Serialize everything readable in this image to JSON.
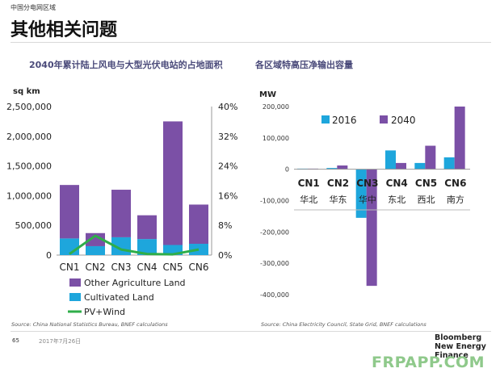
{
  "header": {
    "section_label": "中国分电网区域",
    "page_title": "其他相关问题"
  },
  "footer": {
    "page_number": "65",
    "date": "2017年7月26日",
    "brand_line1": "Bloomberg",
    "brand_line2": "New Energy Finance",
    "watermark": "FRPAPP.COM"
  },
  "colors": {
    "other_agriculture": "#7b50a6",
    "cultivated": "#1ea6dc",
    "pv_wind": "#2fae4a",
    "bar_2016": "#1ea6dc",
    "bar_2040": "#7b50a6"
  },
  "chart_data": [
    {
      "type": "bar",
      "stacked": true,
      "title": "2040年累计陆上风电与大型光伏电站的占地面积",
      "ylabel": "sq km",
      "categories": [
        "CN1",
        "CN2",
        "CN3",
        "CN4",
        "CN5",
        "CN6"
      ],
      "series": [
        {
          "name": "Cultivated Land",
          "values": [
            280000,
            150000,
            300000,
            270000,
            170000,
            190000
          ]
        },
        {
          "name": "Other Agriculture Land",
          "values": [
            900000,
            220000,
            800000,
            400000,
            2080000,
            660000
          ]
        }
      ],
      "line_series": {
        "name": "PV+Wind",
        "axis": "right",
        "values": [
          0.3,
          5.2,
          1.5,
          0.3,
          0.2,
          1.5
        ]
      },
      "ylim": [
        0,
        2500000
      ],
      "yticks": [
        "0",
        "500,000",
        "1,000,000",
        "1,500,000",
        "2,000,000",
        "2,500,000"
      ],
      "y2lim": [
        0,
        40
      ],
      "y2ticks": [
        "0%",
        "8%",
        "16%",
        "24%",
        "32%",
        "40%"
      ],
      "legend": [
        "Other Agriculture Land",
        "Cultivated Land",
        "PV+Wind"
      ],
      "legend_position": "bottom",
      "source": "Source: China National Statistics Bureau, BNEF calculations"
    },
    {
      "type": "bar",
      "title": "各区域特高压净输出容量",
      "ylabel": "MW",
      "categories": [
        "CN1",
        "CN2",
        "CN3",
        "CN4",
        "CN5",
        "CN6"
      ],
      "category_names": [
        "华北",
        "华东",
        "华中",
        "东北",
        "西北",
        "南方"
      ],
      "series": [
        {
          "name": "2016",
          "values": [
            2000,
            4000,
            -155000,
            60000,
            20000,
            38000
          ]
        },
        {
          "name": "2040",
          "values": [
            2000,
            12000,
            -372000,
            20000,
            75000,
            200000
          ]
        }
      ],
      "ylim": [
        -400000,
        200000
      ],
      "yticks": [
        "200,000",
        "100,000",
        "0",
        "-100,000",
        "-200,000",
        "-300,000",
        "-400,000"
      ],
      "legend_position": "top",
      "source": "Source: China Electricity Council, State Grid, BNEF calculations"
    }
  ]
}
